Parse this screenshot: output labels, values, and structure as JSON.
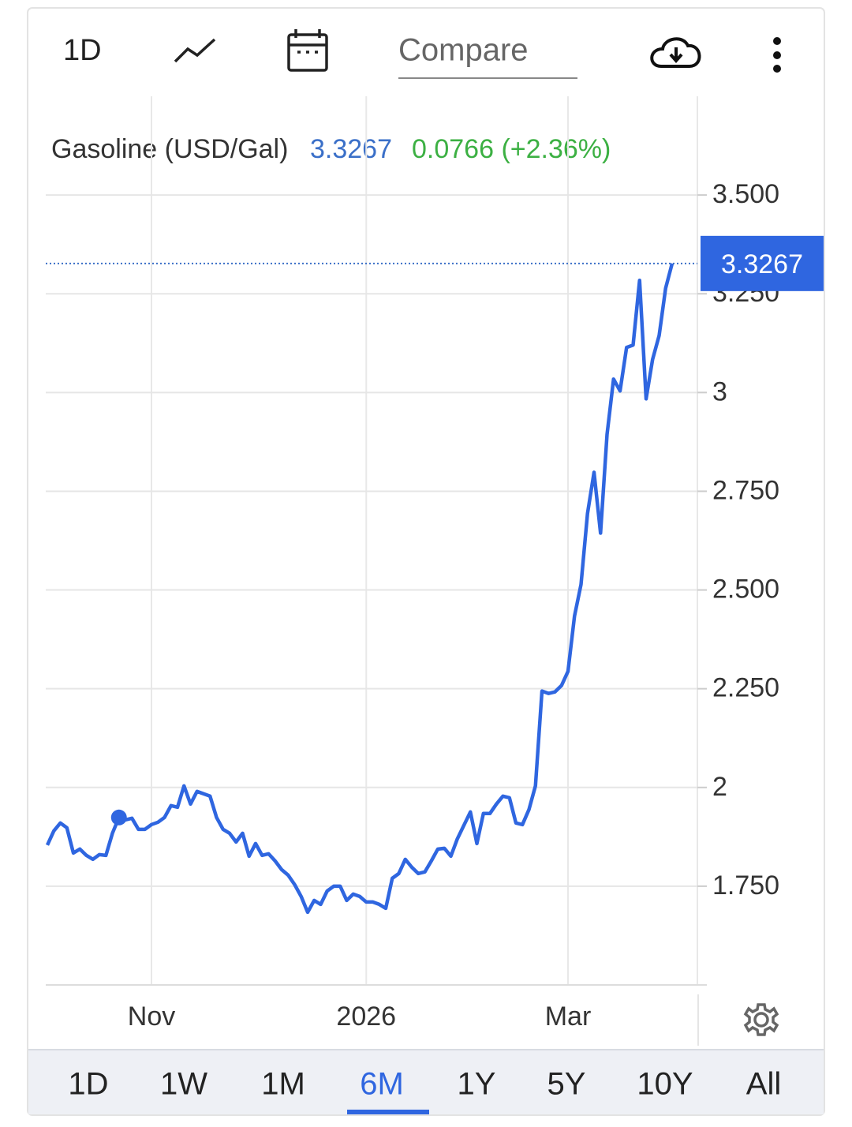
{
  "toolbar": {
    "interval": "1D",
    "compare": "Compare"
  },
  "chart_data": {
    "type": "line",
    "series": [
      {
        "name": "Gasoline (USD/Gal)",
        "color": "#2f66e0",
        "values": [
          1.854,
          1.89,
          1.91,
          1.898,
          1.834,
          1.844,
          1.828,
          1.818,
          1.83,
          1.828,
          1.884,
          1.924,
          1.918,
          1.922,
          1.894,
          1.894,
          1.906,
          1.912,
          1.924,
          1.954,
          1.95,
          2.004,
          1.958,
          1.99,
          1.984,
          1.978,
          1.924,
          1.894,
          1.884,
          1.862,
          1.884,
          1.826,
          1.858,
          1.828,
          1.832,
          1.814,
          1.792,
          1.778,
          1.754,
          1.724,
          1.684,
          1.714,
          1.704,
          1.738,
          1.75,
          1.75,
          1.714,
          1.73,
          1.724,
          1.71,
          1.71,
          1.704,
          1.694,
          1.77,
          1.782,
          1.818,
          1.798,
          1.782,
          1.786,
          1.814,
          1.844,
          1.846,
          1.826,
          1.87,
          1.904,
          1.938,
          1.858,
          1.934,
          1.934,
          1.958,
          1.978,
          1.974,
          1.91,
          1.906,
          1.944,
          2.004,
          2.244,
          2.238,
          2.242,
          2.258,
          2.294,
          2.434,
          2.514,
          2.694,
          2.798,
          2.644,
          2.894,
          3.034,
          3.004,
          3.114,
          3.12,
          3.284,
          2.984,
          3.084,
          3.144,
          3.264,
          3.3267
        ]
      }
    ],
    "x": [
      null,
      null,
      null,
      null,
      null,
      null,
      null,
      null,
      null,
      null,
      null,
      null,
      null,
      null,
      null,
      null,
      "Nov",
      null,
      null,
      null,
      null,
      null,
      null,
      null,
      null,
      null,
      null,
      null,
      null,
      null,
      null,
      null,
      null,
      null,
      null,
      null,
      null,
      null,
      null,
      null,
      null,
      null,
      null,
      null,
      null,
      null,
      null,
      null,
      null,
      "2026",
      null,
      null,
      null,
      null,
      null,
      null,
      null,
      null,
      null,
      null,
      null,
      null,
      null,
      null,
      null,
      null,
      null,
      null,
      null,
      null,
      null,
      null,
      null,
      null,
      null,
      null,
      null,
      null,
      null,
      null,
      "Mar",
      null,
      null,
      null,
      null,
      null,
      null,
      null,
      null,
      null,
      null,
      null,
      null,
      null,
      null,
      null,
      null
    ],
    "price": 3.3267,
    "price_color": "#3a6fc8",
    "change": "0.0766 (+2.36%)",
    "change_color": "#3cb043",
    "marker_index": 11,
    "ylim": [
      1.5,
      3.75
    ],
    "yticks": [
      {
        "value": 1.75,
        "label": "1.750"
      },
      2,
      {
        "value": 2.25,
        "label": "2.250"
      },
      {
        "value": 2.5,
        "label": "2.500"
      },
      {
        "value": 2.75,
        "label": "2.750"
      },
      3,
      {
        "value": 3.25,
        "label": "3.250"
      },
      {
        "value": 3.5,
        "label": "3.500"
      }
    ],
    "grid": true
  },
  "ranges": [
    "1D",
    "1W",
    "1M",
    "6M",
    "1Y",
    "5Y",
    "10Y",
    "All"
  ],
  "selected_range": "6M"
}
